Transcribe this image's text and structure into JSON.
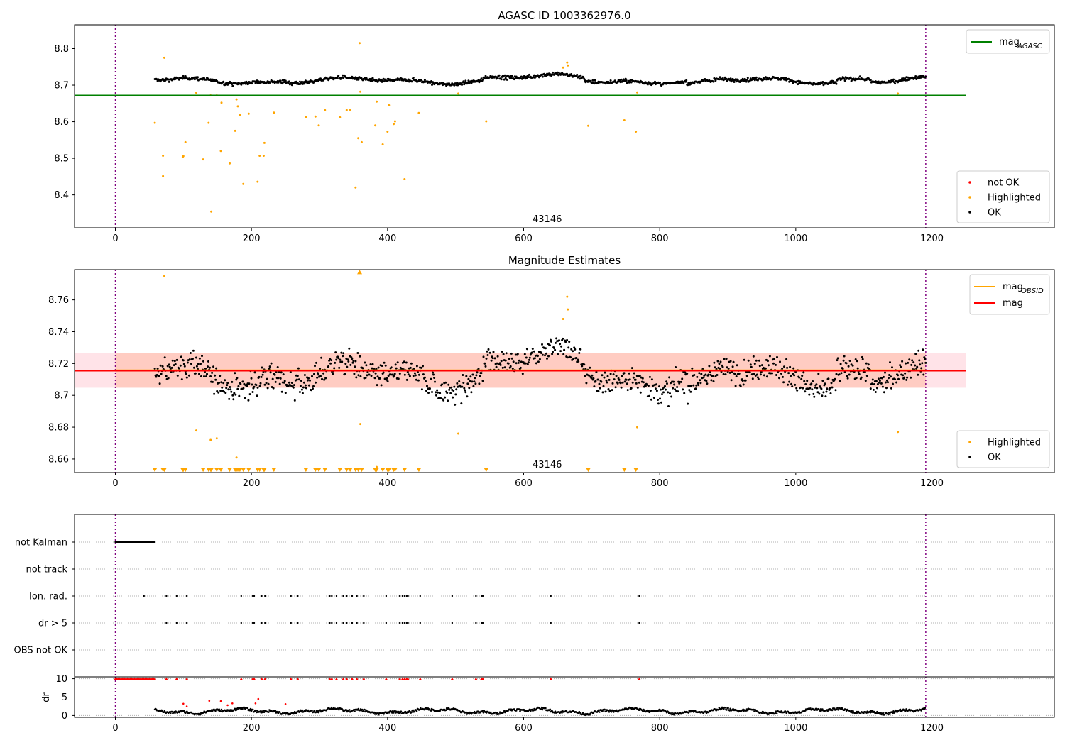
{
  "chart_data": [
    {
      "type": "scatter",
      "title": "AGASC ID 1003362976.0",
      "xlim": [
        -60,
        1380
      ],
      "ylim": [
        8.31,
        8.865
      ],
      "xticks": [
        0,
        200,
        400,
        600,
        800,
        1000,
        1200
      ],
      "yticks": [
        8.4,
        8.5,
        8.6,
        8.7,
        8.8
      ],
      "vlines": [
        0,
        1191
      ],
      "hlines": [
        {
          "name": "mag_AGASC",
          "y": 8.672,
          "x0": -60,
          "x1": 1250,
          "color": "#008000"
        }
      ],
      "annotation": {
        "text": "43146",
        "x": 595,
        "y": 8.322
      },
      "legend_lines": [
        {
          "label": "mag",
          "sub": "AGASC",
          "color": "#008000"
        }
      ],
      "legend_points": [
        {
          "label": "not OK",
          "color": "#ff0000"
        },
        {
          "label": "Highlighted",
          "color": "#ffa500"
        },
        {
          "label": "OK",
          "color": "#000000"
        }
      ],
      "series": [
        {
          "name": "not OK",
          "color": "#ff0000",
          "points": []
        },
        {
          "name": "Highlighted",
          "color": "#ffa500",
          "points": [
            [
              58,
              8.597
            ],
            [
              70,
              8.507
            ],
            [
              70,
              8.451
            ],
            [
              72,
              8.775
            ],
            [
              99,
              8.503
            ],
            [
              100,
              8.506
            ],
            [
              103,
              8.544
            ],
            [
              119,
              8.679
            ],
            [
              129,
              8.497
            ],
            [
              137,
              8.597
            ],
            [
              140,
              8.672
            ],
            [
              141,
              8.354
            ],
            [
              149,
              8.672
            ],
            [
              155,
              8.52
            ],
            [
              156,
              8.652
            ],
            [
              168,
              8.486
            ],
            [
              176,
              8.575
            ],
            [
              178,
              8.661
            ],
            [
              180,
              8.642
            ],
            [
              183,
              8.618
            ],
            [
              188,
              8.43
            ],
            [
              196,
              8.622
            ],
            [
              209,
              8.436
            ],
            [
              212,
              8.507
            ],
            [
              218,
              8.507
            ],
            [
              219,
              8.542
            ],
            [
              233,
              8.625
            ],
            [
              280,
              8.613
            ],
            [
              294,
              8.614
            ],
            [
              299,
              8.59
            ],
            [
              308,
              8.632
            ],
            [
              330,
              8.612
            ],
            [
              340,
              8.632
            ],
            [
              345,
              8.633
            ],
            [
              353,
              8.42
            ],
            [
              357,
              8.555
            ],
            [
              359,
              8.815
            ],
            [
              360,
              8.682
            ],
            [
              362,
              8.544
            ],
            [
              382,
              8.59
            ],
            [
              384,
              8.655
            ],
            [
              393,
              8.538
            ],
            [
              400,
              8.573
            ],
            [
              402,
              8.645
            ],
            [
              409,
              8.594
            ],
            [
              411,
              8.601
            ],
            [
              425,
              8.443
            ],
            [
              446,
              8.624
            ],
            [
              504,
              8.677
            ],
            [
              545,
              8.601
            ],
            [
              658,
              8.748
            ],
            [
              664,
              8.762
            ],
            [
              665,
              8.754
            ],
            [
              695,
              8.589
            ],
            [
              748,
              8.604
            ],
            [
              765,
              8.573
            ],
            [
              767,
              8.68
            ],
            [
              1150,
              8.677
            ]
          ]
        },
        {
          "name": "OK",
          "color": "#000000",
          "points": []
        }
      ]
    },
    {
      "type": "scatter",
      "title": "Magnitude Estimates",
      "xlim": [
        -60,
        1380
      ],
      "ylim": [
        8.6515,
        8.779
      ],
      "xticks": [
        0,
        200,
        400,
        600,
        800,
        1000,
        1200
      ],
      "yticks": [
        8.66,
        8.68,
        8.7,
        8.72,
        8.74,
        8.76
      ],
      "vlines": [
        0,
        1191
      ],
      "hlines": [
        {
          "name": "mag_OBSID",
          "y": 8.7158,
          "x0": 0,
          "x1": 1191,
          "color": "#ffa500"
        },
        {
          "name": "mag",
          "y": 8.7155,
          "x0": -60,
          "x1": 1250,
          "color": "#ff0000"
        }
      ],
      "bands": [
        {
          "y0": 8.7048,
          "y1": 8.7268,
          "x0": -60,
          "x1": 1250,
          "color": "#ffc0cb",
          "opacity": 0.45
        },
        {
          "y0": 8.7048,
          "y1": 8.7268,
          "x0": 0,
          "x1": 1191,
          "color": "#ffa07a",
          "opacity": 0.35
        }
      ],
      "annotation": {
        "text": "43146",
        "x": 595,
        "y": 8.6537
      },
      "legend_lines": [
        {
          "label": "mag",
          "sub": "OBSID",
          "color": "#ffa500"
        },
        {
          "label": "mag",
          "sub": "",
          "color": "#ff0000"
        }
      ],
      "legend_points": [
        {
          "label": "Highlighted",
          "color": "#ffa500"
        },
        {
          "label": "OK",
          "color": "#000000"
        }
      ],
      "lower_markers_y": 8.6532,
      "upper_markers_y": 8.7775,
      "lower_markers_x": [
        58,
        70,
        72,
        99,
        100,
        103,
        129,
        137,
        140,
        141,
        149,
        155,
        168,
        176,
        178,
        180,
        183,
        188,
        196,
        209,
        212,
        218,
        219,
        233,
        280,
        294,
        299,
        308,
        330,
        340,
        345,
        353,
        357,
        362,
        382,
        384,
        393,
        400,
        402,
        409,
        411,
        425,
        446,
        545,
        695,
        748,
        765
      ],
      "upper_markers_x": [
        359
      ],
      "series": [
        {
          "name": "Highlighted",
          "color": "#ffa500",
          "points": [
            [
              72,
              8.775
            ],
            [
              119,
              8.678
            ],
            [
              140,
              8.672
            ],
            [
              149,
              8.673
            ],
            [
              178,
              8.661
            ],
            [
              360,
              8.682
            ],
            [
              384,
              8.655
            ],
            [
              504,
              8.676
            ],
            [
              658,
              8.748
            ],
            [
              664,
              8.762
            ],
            [
              665,
              8.754
            ],
            [
              767,
              8.68
            ],
            [
              1150,
              8.677
            ]
          ]
        },
        {
          "name": "OK",
          "color": "#000000",
          "points": []
        }
      ]
    },
    {
      "type": "scatter",
      "title": "",
      "xlim": [
        -60,
        1380
      ],
      "categories": [
        "not Kalman",
        "not track",
        "Ion. rad.",
        "dr > 5",
        "OBS not OK"
      ],
      "flags": {
        "not Kalman": {
          "range": [
            0,
            58
          ]
        },
        "not track": {
          "x": []
        },
        "Ion. rad.": {
          "x": [
            42,
            75,
            90,
            105,
            185,
            202,
            204,
            215,
            220,
            258,
            268,
            315,
            318,
            325,
            335,
            340,
            348,
            355,
            365,
            398,
            418,
            422,
            425,
            428,
            430,
            448,
            495,
            530,
            538,
            540,
            640,
            770
          ]
        },
        "dr > 5": {
          "x": [
            75,
            90,
            105,
            185,
            202,
            204,
            215,
            220,
            258,
            268,
            315,
            318,
            325,
            335,
            340,
            348,
            355,
            365,
            398,
            418,
            422,
            425,
            428,
            430,
            448,
            495,
            530,
            538,
            540,
            640,
            770
          ]
        },
        "OBS not OK": {
          "x": []
        }
      }
    },
    {
      "type": "scatter",
      "title": "",
      "ylabel": "dr",
      "xlim": [
        -60,
        1380
      ],
      "ylim": [
        -0.5,
        10.5
      ],
      "xticks": [
        0,
        200,
        400,
        600,
        800,
        1000,
        1200
      ],
      "yticks": [
        0,
        5,
        10
      ],
      "vlines": [
        0,
        1191
      ],
      "clip_markers_y": 10,
      "clip_markers_x": [
        75,
        90,
        105,
        185,
        202,
        204,
        215,
        220,
        258,
        268,
        315,
        318,
        325,
        335,
        340,
        348,
        355,
        365,
        398,
        418,
        422,
        425,
        428,
        430,
        448,
        495,
        530,
        538,
        540,
        640,
        770
      ],
      "clip_range": [
        0,
        58
      ],
      "series": [
        {
          "name": "not OK",
          "color": "#ff0000",
          "points": [
            [
              100,
              3.2
            ],
            [
              105,
              2.5
            ],
            [
              138,
              4.0
            ],
            [
              155,
              3.9
            ],
            [
              165,
              2.8
            ],
            [
              172,
              3.3
            ],
            [
              206,
              3.3
            ],
            [
              210,
              4.5
            ],
            [
              250,
              3.1
            ]
          ]
        },
        {
          "name": "OK",
          "color": "#000000",
          "points": []
        }
      ]
    }
  ]
}
